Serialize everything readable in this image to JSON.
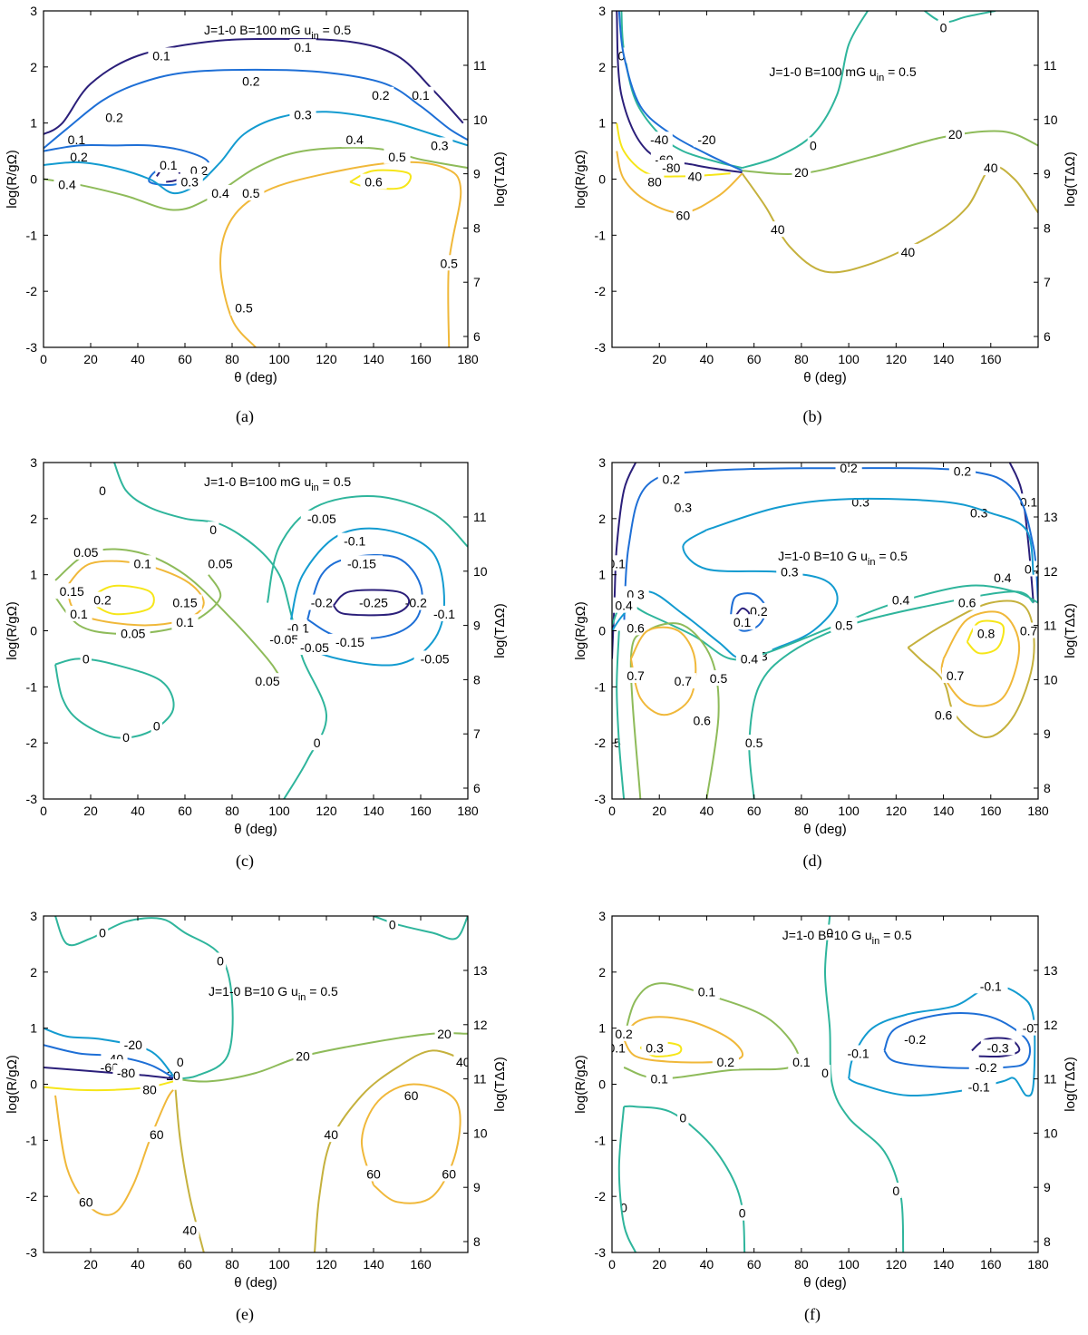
{
  "palette": {
    "c1": "#2b1f7a",
    "c2": "#1e6fd6",
    "c3": "#139bd0",
    "c4": "#2fb59c",
    "c5": "#8ebb5a",
    "c6": "#c5b13d",
    "c7": "#f0b83a",
    "c8": "#f6e619"
  },
  "chart_data": [
    {
      "type": "contour",
      "caption": "(a)",
      "annotation": "J=1-0  B=100 mG  u",
      "annotation_sub": "in",
      "annotation_tail": " = 0.5",
      "xlabel": "θ (deg)",
      "ylabel": "log(R/gΩ)",
      "y2label": "log(TΔΩ)",
      "xlim": [
        0,
        180
      ],
      "ylim": [
        -3,
        3
      ],
      "xticks": [
        "0",
        "20",
        "40",
        "60",
        "80",
        "100",
        "120",
        "140",
        "160",
        "180"
      ],
      "yticks": [
        "-3",
        "-2",
        "-1",
        "0",
        "1",
        "2",
        "3"
      ],
      "y2ticks": [
        "6",
        "7",
        "8",
        "9",
        "10",
        "11"
      ],
      "contour_levels": [
        "0.1",
        "0.2",
        "0.3",
        "0.4",
        "0.5",
        "0.6"
      ]
    },
    {
      "type": "contour",
      "caption": "(b)",
      "annotation": "J=1-0  B=100 mG  u",
      "annotation_sub": "in",
      "annotation_tail": " = 0.5",
      "xlabel": "θ (deg)",
      "ylabel": "log(R/gΩ)",
      "y2label": "log(TΔΩ)",
      "xlim": [
        0,
        180
      ],
      "ylim": [
        -3,
        3
      ],
      "xticks": [
        "20",
        "40",
        "60",
        "80",
        "100",
        "120",
        "140",
        "160"
      ],
      "yticks": [
        "-3",
        "-2",
        "-1",
        "0",
        "1",
        "2",
        "3"
      ],
      "y2ticks": [
        "6",
        "7",
        "8",
        "9",
        "10",
        "11"
      ],
      "contour_levels": [
        "-80",
        "-60",
        "-40",
        "-20",
        "0",
        "20",
        "40",
        "60",
        "80"
      ]
    },
    {
      "type": "contour",
      "caption": "(c)",
      "annotation": "J=1-0  B=100 mG  u",
      "annotation_sub": "in",
      "annotation_tail": " = 0.5",
      "xlabel": "θ (deg)",
      "ylabel": "log(R/gΩ)",
      "y2label": "log(TΔΩ)",
      "xlim": [
        0,
        180
      ],
      "ylim": [
        -3,
        3
      ],
      "xticks": [
        "0",
        "20",
        "40",
        "60",
        "80",
        "100",
        "120",
        "140",
        "160",
        "180"
      ],
      "yticks": [
        "-3",
        "-2",
        "-1",
        "0",
        "1",
        "2",
        "3"
      ],
      "y2ticks": [
        "6",
        "7",
        "8",
        "9",
        "10",
        "11"
      ],
      "contour_levels": [
        "-0.25",
        "-0.2",
        "-0.15",
        "-0.1",
        "-0.05",
        "0",
        "0.05",
        "0.1",
        "0.15",
        "0.2"
      ]
    },
    {
      "type": "contour",
      "caption": "(d)",
      "annotation": "J=1-0  B=10 G  u",
      "annotation_sub": "in",
      "annotation_tail": " = 0.5",
      "xlabel": "θ (deg)",
      "ylabel": "log(R/gΩ)",
      "y2label": "log(TΔΩ)",
      "xlim": [
        0,
        180
      ],
      "ylim": [
        -3,
        3
      ],
      "xticks": [
        "0",
        "20",
        "40",
        "60",
        "80",
        "100",
        "120",
        "140",
        "160",
        "180"
      ],
      "yticks": [
        "-3",
        "-2",
        "-1",
        "0",
        "1",
        "2",
        "3"
      ],
      "y2ticks": [
        "8",
        "9",
        "10",
        "11",
        "12",
        "13"
      ],
      "contour_levels": [
        "0.1",
        "0.2",
        "0.3",
        "0.4",
        "0.5",
        "0.6",
        "0.7",
        "0.8"
      ]
    },
    {
      "type": "contour",
      "caption": "(e)",
      "annotation": "J=1-0  B=10 G  u",
      "annotation_sub": "in",
      "annotation_tail": " = 0.5",
      "xlabel": "θ (deg)",
      "ylabel": "log(R/gΩ)",
      "y2label": "log(TΔΩ)",
      "xlim": [
        0,
        180
      ],
      "ylim": [
        -3,
        3
      ],
      "xticks": [
        "20",
        "40",
        "60",
        "80",
        "100",
        "120",
        "140",
        "160"
      ],
      "yticks": [
        "-3",
        "-2",
        "-1",
        "0",
        "1",
        "2",
        "3"
      ],
      "y2ticks": [
        "8",
        "9",
        "10",
        "11",
        "12",
        "13"
      ],
      "contour_levels": [
        "-80",
        "-60",
        "-40",
        "-20",
        "0",
        "20",
        "40",
        "60",
        "80"
      ]
    },
    {
      "type": "contour",
      "caption": "(f)",
      "annotation": "J=1-0  B=10 G  u",
      "annotation_sub": "in",
      "annotation_tail": " = 0.5",
      "xlabel": "θ (deg)",
      "ylabel": "log(R/gΩ)",
      "y2label": "log(TΔΩ)",
      "xlim": [
        0,
        180
      ],
      "ylim": [
        -3,
        3
      ],
      "xticks": [
        "0",
        "20",
        "40",
        "60",
        "80",
        "100",
        "120",
        "140",
        "160",
        "180"
      ],
      "yticks": [
        "-3",
        "-2",
        "-1",
        "0",
        "1",
        "2",
        "3"
      ],
      "y2ticks": [
        "8",
        "9",
        "10",
        "11",
        "12",
        "13"
      ],
      "contour_levels": [
        "-0.3",
        "-0.2",
        "-0.1",
        "0",
        "0.1",
        "0.2",
        "0.3"
      ]
    }
  ]
}
